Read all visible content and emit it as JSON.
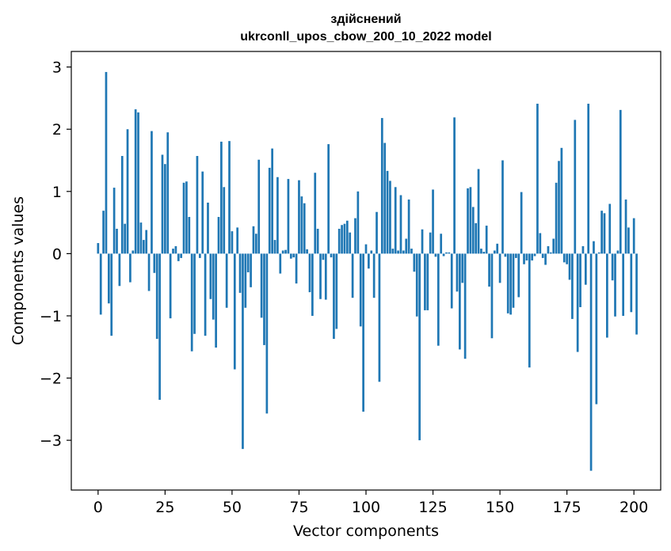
{
  "chart_data": {
    "type": "bar",
    "title_line1": "здійснений",
    "title_line2": "ukrconll_upos_cbow_200_10_2022 model",
    "xlabel": "Vector components",
    "ylabel": "Components values",
    "xlim": [
      -10,
      210
    ],
    "ylim": [
      -3.8,
      3.25
    ],
    "x_ticks": [
      0,
      25,
      50,
      75,
      100,
      125,
      150,
      175,
      200
    ],
    "y_ticks": [
      3,
      2,
      1,
      0,
      -1,
      -2,
      -3
    ],
    "y_tick_labels": [
      "3",
      "2",
      "1",
      "0",
      "−1",
      "−2",
      "−3"
    ],
    "color": "#1f77b4",
    "values": [
      0.17,
      -0.98,
      0.69,
      2.92,
      -0.8,
      -1.32,
      1.06,
      0.4,
      -0.52,
      1.57,
      0.48,
      2.0,
      -0.46,
      0.05,
      2.32,
      2.27,
      0.5,
      0.22,
      0.38,
      -0.6,
      1.97,
      -0.31,
      -1.37,
      -2.35,
      1.59,
      1.44,
      1.95,
      -1.04,
      0.08,
      0.12,
      -0.12,
      -0.07,
      1.14,
      1.16,
      0.59,
      -1.57,
      -1.29,
      1.57,
      -0.07,
      1.32,
      -1.32,
      0.82,
      -0.73,
      -1.06,
      -1.51,
      0.59,
      1.8,
      1.07,
      -0.87,
      1.81,
      0.36,
      -1.86,
      0.42,
      -0.63,
      -3.14,
      -0.87,
      -0.3,
      -0.54,
      0.44,
      0.32,
      1.51,
      -1.03,
      -1.47,
      -2.57,
      1.38,
      1.69,
      0.22,
      1.23,
      -0.32,
      0.05,
      0.06,
      1.2,
      -0.08,
      -0.06,
      -0.48,
      1.18,
      0.92,
      0.81,
      0.07,
      -0.62,
      -1.0,
      1.3,
      0.4,
      -0.73,
      -0.1,
      -0.74,
      1.76,
      -0.06,
      -1.37,
      -1.21,
      0.4,
      0.46,
      0.48,
      0.53,
      0.34,
      -0.71,
      0.57,
      1.0,
      -1.17,
      -2.54,
      0.15,
      -0.24,
      0.05,
      -0.71,
      0.67,
      -2.06,
      2.18,
      1.78,
      1.33,
      1.17,
      0.08,
      1.07,
      0.05,
      0.94,
      0.05,
      0.24,
      0.87,
      0.08,
      -0.29,
      -1.01,
      -3.0,
      0.39,
      -0.91,
      -0.91,
      0.34,
      1.03,
      -0.05,
      -1.48,
      0.32,
      -0.04,
      0.02,
      0.02,
      -0.88,
      2.19,
      -0.61,
      -1.54,
      -0.47,
      -1.69,
      1.05,
      1.07,
      0.75,
      0.49,
      1.36,
      0.08,
      0.03,
      0.45,
      -0.53,
      -1.36,
      0.05,
      0.16,
      -0.47,
      1.5,
      -0.05,
      -0.96,
      -0.98,
      -0.87,
      -0.07,
      -0.7,
      0.99,
      -0.17,
      -0.11,
      -1.83,
      -0.11,
      -0.04,
      2.41,
      0.33,
      -0.07,
      -0.18,
      0.12,
      0.02,
      0.24,
      1.14,
      1.49,
      1.7,
      -0.14,
      -0.17,
      -0.42,
      -1.05,
      2.15,
      -1.58,
      -0.86,
      0.12,
      -0.5,
      2.41,
      -3.49,
      0.2,
      -2.42,
      0.02,
      0.69,
      0.65,
      -1.35,
      0.8,
      -0.43,
      -1.01,
      0.05,
      2.31,
      -1.0,
      0.87,
      0.42,
      -0.94,
      0.57,
      -1.3
    ]
  }
}
